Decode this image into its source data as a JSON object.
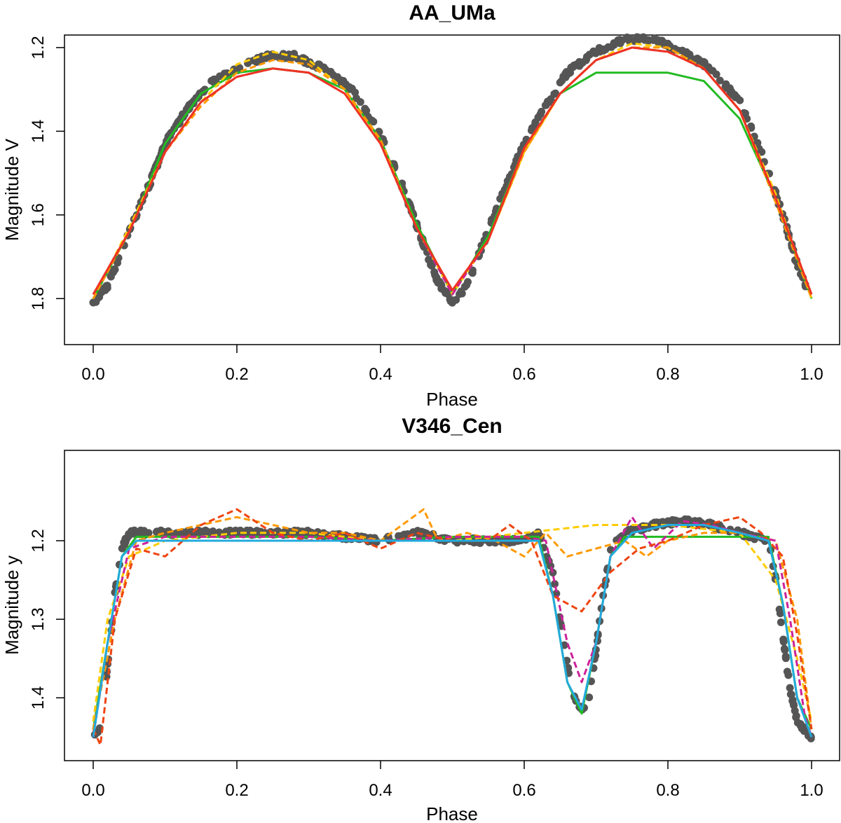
{
  "chart_data": [
    {
      "type": "scatter",
      "title": "AA_UMa",
      "xlabel": "Phase",
      "ylabel": "Magnitude V",
      "xlim": [
        0.0,
        1.0
      ],
      "ylim": [
        1.91,
        1.17
      ],
      "y_reversed": true,
      "x_ticks": [
        "0.0",
        "0.2",
        "0.4",
        "0.6",
        "0.8",
        "1.0"
      ],
      "y_ticks": [
        "1.2",
        "1.4",
        "1.6",
        "1.8"
      ],
      "points_color": "#555555",
      "observations": {
        "x": [
          0.0,
          0.02,
          0.05,
          0.08,
          0.1,
          0.13,
          0.16,
          0.2,
          0.24,
          0.28,
          0.32,
          0.36,
          0.4,
          0.43,
          0.46,
          0.48,
          0.5,
          0.52,
          0.54,
          0.57,
          0.6,
          0.63,
          0.66,
          0.7,
          0.74,
          0.78,
          0.82,
          0.86,
          0.9,
          0.93,
          0.96,
          0.98,
          1.0
        ],
        "y": [
          1.81,
          1.77,
          1.64,
          1.52,
          1.43,
          1.35,
          1.29,
          1.25,
          1.22,
          1.22,
          1.25,
          1.3,
          1.41,
          1.53,
          1.67,
          1.76,
          1.81,
          1.77,
          1.68,
          1.55,
          1.43,
          1.34,
          1.26,
          1.21,
          1.18,
          1.18,
          1.21,
          1.25,
          1.33,
          1.45,
          1.6,
          1.72,
          1.81
        ]
      },
      "series": [
        {
          "name": "",
          "color": "#22bb22",
          "dash": false,
          "x": [
            0.0,
            0.05,
            0.1,
            0.15,
            0.2,
            0.25,
            0.3,
            0.35,
            0.4,
            0.45,
            0.5,
            0.55,
            0.6,
            0.65,
            0.7,
            0.75,
            0.8,
            0.85,
            0.9,
            0.95,
            1.0
          ],
          "y": [
            1.8,
            1.64,
            1.43,
            1.31,
            1.26,
            1.25,
            1.26,
            1.3,
            1.42,
            1.62,
            1.79,
            1.65,
            1.44,
            1.31,
            1.26,
            1.26,
            1.26,
            1.28,
            1.37,
            1.56,
            1.8
          ]
        },
        {
          "name": "",
          "color": "#ffcc00",
          "dash": true,
          "x": [
            0.0,
            0.05,
            0.1,
            0.15,
            0.2,
            0.25,
            0.3,
            0.35,
            0.4,
            0.45,
            0.5,
            0.55,
            0.6,
            0.65,
            0.7,
            0.75,
            0.8,
            0.85,
            0.9,
            0.95,
            1.0
          ],
          "y": [
            1.8,
            1.63,
            1.45,
            1.33,
            1.24,
            1.21,
            1.23,
            1.3,
            1.43,
            1.63,
            1.79,
            1.66,
            1.45,
            1.31,
            1.23,
            1.19,
            1.2,
            1.25,
            1.35,
            1.55,
            1.8
          ]
        },
        {
          "name": "",
          "color": "#ff9900",
          "dash": true,
          "x": [
            0.0,
            0.05,
            0.1,
            0.15,
            0.2,
            0.25,
            0.3,
            0.35,
            0.4,
            0.45,
            0.5,
            0.55,
            0.6,
            0.65,
            0.7,
            0.75,
            0.8,
            0.85,
            0.9,
            0.95,
            1.0
          ],
          "y": [
            1.8,
            1.64,
            1.45,
            1.34,
            1.26,
            1.23,
            1.24,
            1.3,
            1.42,
            1.63,
            1.78,
            1.66,
            1.45,
            1.31,
            1.23,
            1.2,
            1.2,
            1.25,
            1.35,
            1.57,
            1.8
          ]
        },
        {
          "name": "",
          "color": "#cc2299",
          "dash": true,
          "x": [
            0.0,
            0.05,
            0.1,
            0.15,
            0.2,
            0.25,
            0.3,
            0.35,
            0.4,
            0.45,
            0.5,
            0.55,
            0.6,
            0.65,
            0.7,
            0.75,
            0.8,
            0.85,
            0.9,
            0.95,
            1.0
          ],
          "y": [
            1.79,
            1.64,
            1.45,
            1.33,
            1.27,
            1.25,
            1.26,
            1.31,
            1.43,
            1.63,
            1.79,
            1.66,
            1.44,
            1.31,
            1.23,
            1.2,
            1.21,
            1.25,
            1.35,
            1.56,
            1.79
          ]
        },
        {
          "name": "",
          "color": "#ee3322",
          "dash": false,
          "x": [
            0.0,
            0.05,
            0.1,
            0.15,
            0.2,
            0.25,
            0.3,
            0.35,
            0.4,
            0.45,
            0.5,
            0.55,
            0.6,
            0.65,
            0.7,
            0.75,
            0.8,
            0.85,
            0.9,
            0.95,
            1.0
          ],
          "y": [
            1.79,
            1.64,
            1.45,
            1.33,
            1.27,
            1.25,
            1.26,
            1.31,
            1.43,
            1.63,
            1.78,
            1.66,
            1.44,
            1.31,
            1.23,
            1.2,
            1.21,
            1.25,
            1.35,
            1.56,
            1.79
          ]
        }
      ]
    },
    {
      "type": "scatter",
      "title": "V346_Cen",
      "xlabel": "Phase",
      "ylabel": "Magnitude y",
      "xlim": [
        0.0,
        1.0
      ],
      "ylim": [
        1.48,
        1.085
      ],
      "y_reversed": true,
      "x_ticks": [
        "0.0",
        "0.2",
        "0.4",
        "0.6",
        "0.8",
        "1.0"
      ],
      "y_ticks": [
        "1.2",
        "1.3",
        "1.4"
      ],
      "points_color": "#555555",
      "observations": {
        "x": [
          0.0,
          0.01,
          0.02,
          0.03,
          0.04,
          0.05,
          0.08,
          0.12,
          0.2,
          0.3,
          0.4,
          0.45,
          0.5,
          0.55,
          0.6,
          0.62,
          0.64,
          0.65,
          0.66,
          0.67,
          0.68,
          0.69,
          0.7,
          0.71,
          0.72,
          0.74,
          0.78,
          0.82,
          0.86,
          0.9,
          0.94,
          0.95,
          0.96,
          0.97,
          0.98,
          0.99,
          1.0
        ],
        "y": [
          1.445,
          1.44,
          1.36,
          1.27,
          1.21,
          1.19,
          1.19,
          1.19,
          1.19,
          1.19,
          1.2,
          1.19,
          1.2,
          1.2,
          1.2,
          1.19,
          1.24,
          1.3,
          1.36,
          1.4,
          1.415,
          1.4,
          1.34,
          1.27,
          1.21,
          1.19,
          1.18,
          1.175,
          1.18,
          1.19,
          1.2,
          1.25,
          1.32,
          1.39,
          1.43,
          1.44,
          1.45
        ]
      },
      "series": [
        {
          "name": "",
          "color": "#22bb22",
          "dash": false,
          "x": [
            0.0,
            0.02,
            0.04,
            0.06,
            0.1,
            0.2,
            0.3,
            0.4,
            0.5,
            0.6,
            0.62,
            0.64,
            0.66,
            0.68,
            0.7,
            0.72,
            0.74,
            0.8,
            0.9,
            0.94,
            0.96,
            0.98,
            1.0
          ],
          "y": [
            1.44,
            1.33,
            1.22,
            1.195,
            1.195,
            1.195,
            1.195,
            1.2,
            1.195,
            1.195,
            1.195,
            1.27,
            1.38,
            1.42,
            1.33,
            1.22,
            1.195,
            1.195,
            1.195,
            1.195,
            1.28,
            1.4,
            1.44
          ]
        },
        {
          "name": "",
          "color": "#ffcc00",
          "dash": true,
          "x": [
            0.0,
            0.02,
            0.05,
            0.1,
            0.2,
            0.3,
            0.4,
            0.5,
            0.6,
            0.7,
            0.8,
            0.9,
            0.95,
            0.98,
            1.0
          ],
          "y": [
            1.43,
            1.3,
            1.22,
            1.2,
            1.19,
            1.19,
            1.2,
            1.2,
            1.19,
            1.18,
            1.18,
            1.19,
            1.25,
            1.35,
            1.43
          ]
        },
        {
          "name": "",
          "color": "#ff9900",
          "dash": true,
          "x": [
            0.0,
            0.03,
            0.06,
            0.1,
            0.15,
            0.2,
            0.25,
            0.3,
            0.35,
            0.4,
            0.43,
            0.46,
            0.48,
            0.52,
            0.56,
            0.6,
            0.63,
            0.66,
            0.7,
            0.74,
            0.77,
            0.8,
            0.85,
            0.9,
            0.95,
            0.98,
            1.0
          ],
          "y": [
            1.44,
            1.3,
            1.2,
            1.19,
            1.18,
            1.17,
            1.18,
            1.19,
            1.19,
            1.2,
            1.18,
            1.16,
            1.2,
            1.19,
            1.2,
            1.22,
            1.19,
            1.22,
            1.21,
            1.2,
            1.22,
            1.2,
            1.19,
            1.19,
            1.2,
            1.3,
            1.44
          ]
        },
        {
          "name": "",
          "color": "#cc2299",
          "dash": true,
          "x": [
            0.0,
            0.02,
            0.05,
            0.1,
            0.2,
            0.3,
            0.4,
            0.5,
            0.6,
            0.63,
            0.66,
            0.68,
            0.7,
            0.72,
            0.75,
            0.78,
            0.82,
            0.86,
            0.9,
            0.95,
            0.97,
            0.99,
            1.0
          ],
          "y": [
            1.45,
            1.33,
            1.21,
            1.195,
            1.195,
            1.195,
            1.2,
            1.195,
            1.195,
            1.2,
            1.33,
            1.38,
            1.33,
            1.22,
            1.17,
            1.21,
            1.175,
            1.18,
            1.19,
            1.2,
            1.3,
            1.42,
            1.45
          ]
        },
        {
          "name": "",
          "color": "#ee4411",
          "dash": true,
          "x": [
            0.0,
            0.01,
            0.03,
            0.06,
            0.1,
            0.15,
            0.2,
            0.25,
            0.3,
            0.35,
            0.4,
            0.45,
            0.5,
            0.55,
            0.58,
            0.61,
            0.64,
            0.68,
            0.72,
            0.76,
            0.8,
            0.85,
            0.9,
            0.93,
            0.96,
            0.98,
            1.0
          ],
          "y": [
            1.44,
            1.46,
            1.3,
            1.21,
            1.22,
            1.18,
            1.16,
            1.19,
            1.2,
            1.19,
            1.21,
            1.19,
            1.2,
            1.2,
            1.18,
            1.2,
            1.27,
            1.29,
            1.24,
            1.21,
            1.2,
            1.18,
            1.17,
            1.19,
            1.22,
            1.32,
            1.44
          ]
        },
        {
          "name": "",
          "color": "#22aadd",
          "dash": false,
          "x": [
            0.0,
            0.02,
            0.04,
            0.06,
            0.1,
            0.2,
            0.3,
            0.4,
            0.5,
            0.6,
            0.62,
            0.64,
            0.66,
            0.68,
            0.7,
            0.72,
            0.75,
            0.8,
            0.85,
            0.9,
            0.94,
            0.96,
            0.98,
            1.0
          ],
          "y": [
            1.45,
            1.33,
            1.22,
            1.2,
            1.2,
            1.2,
            1.2,
            1.2,
            1.2,
            1.2,
            1.2,
            1.27,
            1.38,
            1.415,
            1.33,
            1.22,
            1.19,
            1.18,
            1.18,
            1.19,
            1.2,
            1.28,
            1.4,
            1.45
          ]
        }
      ]
    }
  ]
}
